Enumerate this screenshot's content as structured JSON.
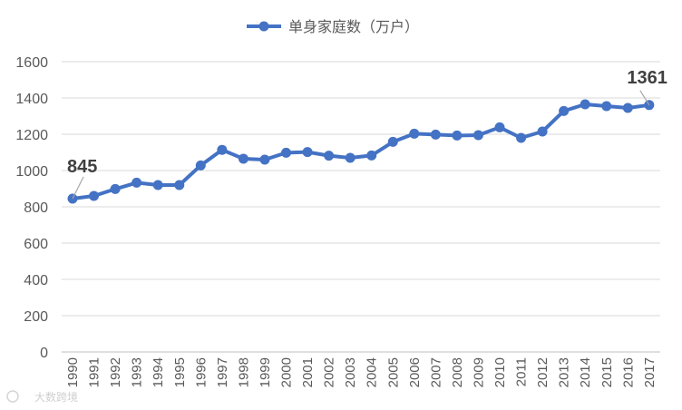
{
  "chart_data": {
    "type": "line",
    "legend_position": "top",
    "grid": true,
    "ylim": [
      0,
      1600
    ],
    "yticks": [
      "0",
      "200",
      "400",
      "600",
      "800",
      "1000",
      "1200",
      "1400",
      "1600"
    ],
    "x": [
      "1990",
      "1991",
      "1992",
      "1993",
      "1994",
      "1995",
      "1996",
      "1997",
      "1998",
      "1999",
      "2000",
      "2001",
      "2002",
      "2003",
      "2004",
      "2005",
      "2006",
      "2007",
      "2008",
      "2009",
      "2010",
      "2011",
      "2012",
      "2013",
      "2014",
      "2015",
      "2016",
      "2017"
    ],
    "series": [
      {
        "name": "单身家庭数（万户）",
        "color": "#4472c4",
        "values": [
          845,
          860,
          898,
          933,
          920,
          920,
          1028,
          1114,
          1065,
          1060,
          1098,
          1102,
          1082,
          1070,
          1083,
          1158,
          1203,
          1198,
          1193,
          1195,
          1238,
          1180,
          1215,
          1328,
          1365,
          1355,
          1345,
          1361
        ]
      }
    ],
    "annotations": [
      {
        "text": "845",
        "x": "1990"
      },
      {
        "text": "1361",
        "x": "2017"
      }
    ]
  },
  "watermark": "大数跨境"
}
